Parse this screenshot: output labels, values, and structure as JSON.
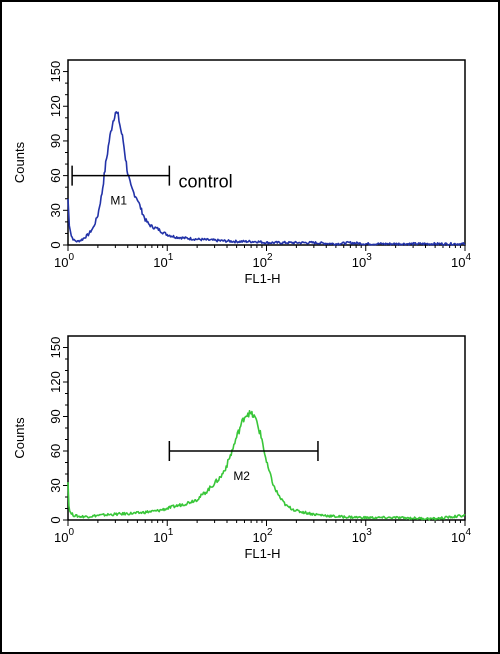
{
  "chart_data": [
    {
      "type": "line",
      "title": "",
      "xlabel": "FL1-H",
      "ylabel": "Counts",
      "x_scale": "log",
      "xlim": [
        1,
        10000
      ],
      "ylim": [
        0,
        160
      ],
      "x_ticks": [
        {
          "base": "10",
          "exp": "0"
        },
        {
          "base": "10",
          "exp": "1"
        },
        {
          "base": "10",
          "exp": "2"
        },
        {
          "base": "10",
          "exp": "3"
        },
        {
          "base": "10",
          "exp": "4"
        }
      ],
      "y_ticks": [
        "0",
        "30",
        "60",
        "90",
        "120",
        "150"
      ],
      "color": "#2333a8",
      "series": [
        {
          "x": [
            1.0,
            1.03,
            1.08,
            1.15,
            1.25,
            1.4,
            1.6,
            1.8,
            2.0,
            2.2,
            2.4,
            2.6,
            2.8,
            3.0,
            3.2,
            3.4,
            3.6,
            3.8,
            4.0,
            4.3,
            4.6,
            5.0,
            5.5,
            6.0,
            6.5,
            7.0,
            8.0,
            9.0,
            10.0,
            12,
            15,
            20,
            30,
            50,
            80,
            100,
            150,
            300,
            500,
            700,
            1000,
            2000,
            5000,
            10000
          ],
          "y": [
            40,
            18,
            8,
            4,
            3,
            5,
            9,
            15,
            26,
            45,
            70,
            90,
            105,
            115,
            112,
            100,
            90,
            75,
            62,
            50,
            45,
            40,
            30,
            22,
            18,
            16,
            14,
            11,
            9,
            7,
            6,
            5,
            4,
            3,
            3,
            2,
            2,
            2,
            1,
            2,
            1,
            1,
            1,
            1
          ]
        }
      ],
      "markers": [
        {
          "label": "M1",
          "x_start": 1.1,
          "x_end": 10.5,
          "y": 60
        }
      ],
      "annotations": [
        {
          "text": "control",
          "x": 13,
          "y": 55
        }
      ]
    },
    {
      "type": "line",
      "title": "",
      "xlabel": "FL1-H",
      "ylabel": "Counts",
      "x_scale": "log",
      "xlim": [
        1,
        10000
      ],
      "ylim": [
        0,
        160
      ],
      "x_ticks": [
        {
          "base": "10",
          "exp": "0"
        },
        {
          "base": "10",
          "exp": "1"
        },
        {
          "base": "10",
          "exp": "2"
        },
        {
          "base": "10",
          "exp": "3"
        },
        {
          "base": "10",
          "exp": "4"
        }
      ],
      "y_ticks": [
        "0",
        "30",
        "60",
        "90",
        "120",
        "150"
      ],
      "color": "#39c639",
      "series": [
        {
          "x": [
            1.0,
            1.02,
            1.06,
            1.15,
            1.3,
            1.6,
            2,
            3,
            5,
            8,
            10,
            12,
            15,
            20,
            25,
            30,
            35,
            40,
            45,
            50,
            55,
            60,
            65,
            70,
            75,
            80,
            90,
            100,
            110,
            120,
            140,
            160,
            200,
            300,
            500,
            1000,
            2000,
            5000,
            10000
          ],
          "y": [
            35,
            12,
            6,
            4,
            3,
            3,
            4,
            5,
            6,
            8,
            10,
            12,
            14,
            18,
            25,
            32,
            38,
            48,
            60,
            72,
            82,
            90,
            93,
            92,
            90,
            85,
            70,
            50,
            38,
            28,
            18,
            12,
            8,
            5,
            3,
            2,
            2,
            1,
            4
          ]
        }
      ],
      "markers": [
        {
          "label": "M2",
          "x_start": 10.5,
          "x_end": 330,
          "y": 60
        }
      ],
      "annotations": []
    }
  ]
}
